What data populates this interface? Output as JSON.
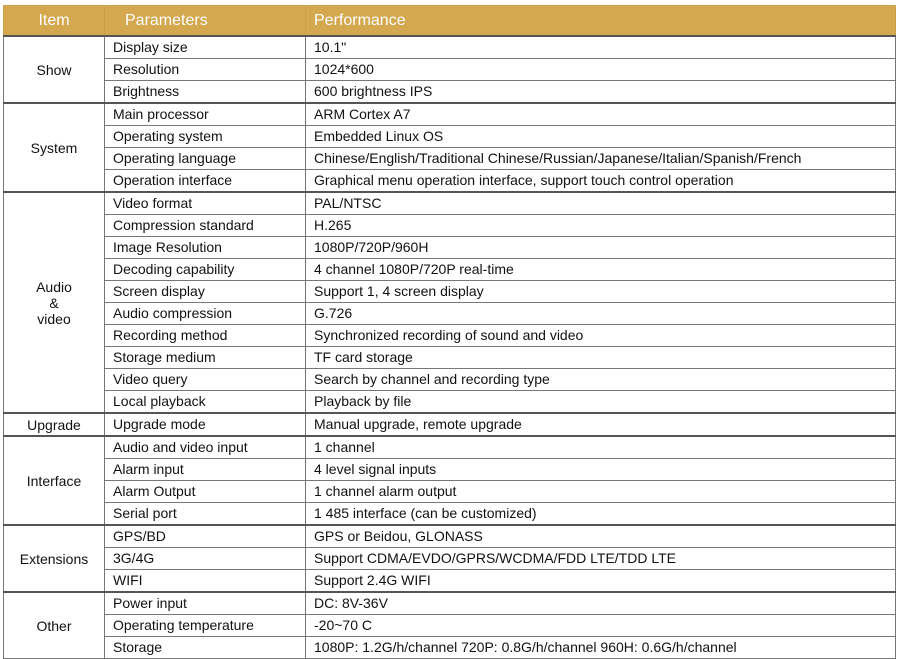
{
  "headers": {
    "item": "Item",
    "parameters": "Parameters",
    "performance": "Performance"
  },
  "groups": [
    {
      "name_lines": [
        "Show"
      ],
      "rows": [
        {
          "param": "Display size",
          "value": "10.1\""
        },
        {
          "param": "Resolution",
          "value": "1024*600"
        },
        {
          "param": "Brightness",
          "value": "600 brightness IPS"
        }
      ]
    },
    {
      "name_lines": [
        "System"
      ],
      "rows": [
        {
          "param": "Main processor",
          "value": "ARM Cortex A7"
        },
        {
          "param": "Operating system",
          "value": "Embedded Linux OS"
        },
        {
          "param": "Operating language",
          "value": "Chinese/English/Traditional Chinese/Russian/Japanese/Italian/Spanish/French"
        },
        {
          "param": "Operation interface",
          "value": "Graphical menu operation interface, support touch control operation"
        }
      ]
    },
    {
      "name_lines": [
        "Audio",
        "&",
        "video"
      ],
      "rows": [
        {
          "param": "Video format",
          "value": "PAL/NTSC"
        },
        {
          "param": "Compression standard",
          "value": "H.265"
        },
        {
          "param": "Image Resolution",
          "value": "1080P/720P/960H"
        },
        {
          "param": "Decoding capability",
          "value": "4 channel 1080P/720P real-time"
        },
        {
          "param": "Screen display",
          "value": "Support 1, 4 screen display"
        },
        {
          "param": "Audio compression",
          "value": "G.726"
        },
        {
          "param": "Recording method",
          "value": "Synchronized recording of sound and video"
        },
        {
          "param": "Storage medium",
          "value": "TF card storage"
        },
        {
          "param": "Video query",
          "value": "Search by channel and recording type"
        },
        {
          "param": "Local playback",
          "value": "Playback by file"
        }
      ]
    },
    {
      "name_lines": [
        "Upgrade"
      ],
      "rows": [
        {
          "param": "Upgrade mode",
          "value": "Manual upgrade, remote upgrade"
        }
      ]
    },
    {
      "name_lines": [
        "Interface"
      ],
      "rows": [
        {
          "param": "Audio and video input",
          "value": "1 channel"
        },
        {
          "param": "Alarm input",
          "value": "4 level signal inputs"
        },
        {
          "param": "Alarm Output",
          "value": "1 channel alarm output"
        },
        {
          "param": "Serial port",
          "value": "1 485 interface (can be customized)"
        }
      ]
    },
    {
      "name_lines": [
        "Extensions"
      ],
      "rows": [
        {
          "param": "GPS/BD",
          "value": "GPS or Beidou, GLONASS"
        },
        {
          "param": "3G/4G",
          "value": "Support CDMA/EVDO/GPRS/WCDMA/FDD LTE/TDD LTE"
        },
        {
          "param": "WIFI",
          "value": "Support 2.4G WIFI"
        }
      ]
    },
    {
      "name_lines": [
        "Other"
      ],
      "rows": [
        {
          "param": "Power input",
          "value": "DC: 8V-36V"
        },
        {
          "param": "Operating temperature",
          "value": "-20~70 C"
        },
        {
          "param": "Storage",
          "value": "1080P: 1.2G/h/channel  720P: 0.8G/h/channel  960H: 0.6G/h/channel"
        }
      ]
    }
  ]
}
